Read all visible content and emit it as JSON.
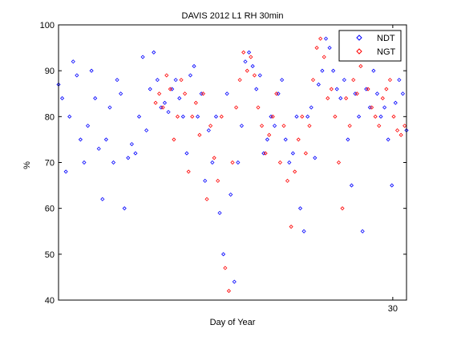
{
  "chart_data": {
    "type": "scatter",
    "title": "DAVIS 2012 L1 RH 30min",
    "xlabel": "Day of Year",
    "ylabel": "%",
    "xlim": [
      22.7,
      30.3
    ],
    "ylim": [
      40,
      100
    ],
    "yticks": [
      40,
      50,
      60,
      70,
      80,
      90,
      100
    ],
    "xticks": [
      30
    ],
    "grid": false,
    "legend_position": "top-right",
    "series": [
      {
        "name": "NDT",
        "color": "#0000ff",
        "marker": "diamond",
        "x": [
          22.7,
          22.78,
          22.86,
          22.94,
          23.02,
          23.1,
          23.18,
          23.26,
          23.34,
          23.42,
          23.5,
          23.58,
          23.66,
          23.74,
          23.82,
          23.9,
          23.98,
          24.06,
          24.14,
          24.22,
          24.3,
          24.38,
          24.46,
          24.54,
          24.62,
          24.7,
          24.78,
          24.86,
          24.94,
          25.02,
          25.1,
          25.18,
          25.26,
          25.34,
          25.42,
          25.5,
          25.58,
          25.66,
          25.74,
          25.82,
          25.9,
          25.98,
          26.06,
          26.14,
          26.22,
          26.3,
          26.38,
          26.46,
          26.54,
          26.62,
          26.7,
          26.78,
          26.86,
          26.94,
          27.02,
          27.1,
          27.18,
          27.26,
          27.34,
          27.42,
          27.5,
          27.58,
          27.66,
          27.74,
          27.82,
          27.9,
          27.98,
          28.06,
          28.14,
          28.22,
          28.3,
          28.38,
          28.46,
          28.54,
          28.62,
          28.7,
          28.78,
          28.86,
          28.94,
          29.02,
          29.1,
          29.18,
          29.26,
          29.34,
          29.42,
          29.5,
          29.58,
          29.66,
          29.74,
          29.82,
          29.9,
          29.98,
          30.06,
          30.14,
          30.22,
          30.3
        ],
        "values": [
          87,
          84,
          68,
          80,
          92,
          89,
          75,
          70,
          78,
          90,
          84,
          73,
          62,
          75,
          82,
          70,
          88,
          85,
          60,
          71,
          74,
          72,
          80,
          93,
          77,
          86,
          94,
          88,
          82,
          83,
          81,
          86,
          88,
          84,
          80,
          72,
          89,
          91,
          80,
          85,
          66,
          77,
          70,
          80,
          59,
          50,
          85,
          63,
          44,
          70,
          78,
          92,
          94,
          91,
          86,
          89,
          72,
          75,
          80,
          78,
          85,
          88,
          75,
          70,
          72,
          80,
          60,
          55,
          80,
          82,
          71,
          87,
          90,
          97,
          95,
          90,
          86,
          84,
          88,
          75,
          65,
          85,
          80,
          55,
          86,
          82,
          90,
          85,
          80,
          82,
          75,
          65,
          83,
          88,
          85,
          77
        ]
      },
      {
        "name": "NGT",
        "color": "#ff0000",
        "marker": "diamond",
        "x": [
          24.82,
          24.9,
          24.98,
          25.06,
          25.14,
          25.22,
          25.3,
          25.38,
          25.46,
          25.54,
          25.62,
          25.7,
          25.78,
          25.86,
          25.94,
          26.02,
          26.1,
          26.18,
          26.26,
          26.34,
          26.42,
          26.5,
          26.58,
          26.66,
          26.74,
          26.82,
          26.9,
          26.98,
          27.06,
          27.14,
          27.22,
          27.3,
          27.38,
          27.46,
          27.54,
          27.62,
          27.7,
          27.78,
          27.86,
          27.94,
          28.02,
          28.1,
          28.18,
          28.26,
          28.34,
          28.42,
          28.5,
          28.58,
          28.66,
          28.74,
          28.82,
          28.9,
          28.98,
          29.06,
          29.14,
          29.22,
          29.3,
          29.38,
          29.46,
          29.54,
          29.62,
          29.7,
          29.78,
          29.86,
          29.94,
          30.02,
          30.1,
          30.18,
          30.26
        ],
        "values": [
          83,
          85,
          82,
          89,
          86,
          75,
          80,
          88,
          85,
          68,
          80,
          83,
          76,
          85,
          62,
          78,
          71,
          66,
          80,
          47,
          42,
          70,
          82,
          88,
          94,
          90,
          93,
          89,
          82,
          78,
          72,
          76,
          80,
          85,
          70,
          78,
          66,
          56,
          68,
          75,
          80,
          72,
          78,
          88,
          95,
          97,
          93,
          84,
          86,
          80,
          70,
          60,
          84,
          78,
          88,
          85,
          91,
          93,
          86,
          82,
          80,
          78,
          84,
          86,
          88,
          80,
          77,
          76,
          78
        ]
      }
    ]
  }
}
